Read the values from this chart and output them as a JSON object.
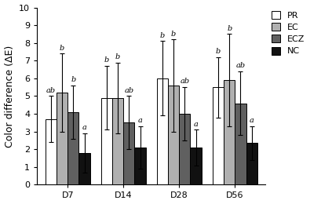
{
  "groups": [
    "D7",
    "D14",
    "D28",
    "D56"
  ],
  "series": [
    "PR",
    "EC",
    "ECZ",
    "NC"
  ],
  "values": [
    [
      3.7,
      4.9,
      6.0,
      5.5
    ],
    [
      5.2,
      4.9,
      5.6,
      5.9
    ],
    [
      4.1,
      3.5,
      4.0,
      4.6
    ],
    [
      1.8,
      2.1,
      2.1,
      2.35
    ]
  ],
  "errors": [
    [
      1.3,
      1.8,
      2.1,
      1.7
    ],
    [
      2.2,
      2.0,
      2.6,
      2.6
    ],
    [
      1.5,
      1.5,
      1.5,
      1.8
    ],
    [
      1.1,
      1.2,
      1.0,
      0.95
    ]
  ],
  "bar_colors": [
    "#ffffff",
    "#b0b0b0",
    "#606060",
    "#111111"
  ],
  "bar_edgecolors": [
    "#000000",
    "#000000",
    "#000000",
    "#000000"
  ],
  "ylabel": "Color difference (ΔE)",
  "ylim": [
    0,
    10
  ],
  "yticks": [
    0,
    1,
    2,
    3,
    4,
    5,
    6,
    7,
    8,
    9,
    10
  ],
  "legend_labels": [
    "PR",
    "EC",
    "ECZ",
    "NC"
  ],
  "significance_labels": [
    [
      "ab",
      "b",
      "b",
      "b"
    ],
    [
      "b",
      "b",
      "b",
      "b"
    ],
    [
      "b",
      "ab",
      "ab",
      "ab"
    ],
    [
      "a",
      "a",
      "a",
      "a"
    ]
  ],
  "bar_width": 0.2,
  "label_fontsize": 9,
  "tick_fontsize": 8,
  "legend_fontsize": 8,
  "sig_fontsize": 7
}
